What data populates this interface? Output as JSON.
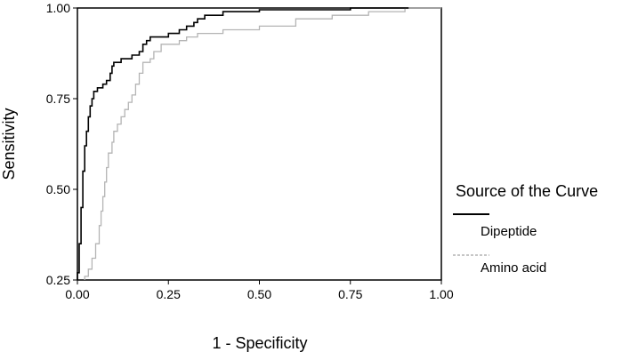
{
  "chart_data": {
    "type": "line",
    "title": "",
    "xlabel": "1 - Specificity",
    "ylabel": "Sensitivity",
    "xlim": [
      0,
      1
    ],
    "ylim": [
      0.25,
      1
    ],
    "x_ticks": [
      "0.00",
      "0.25",
      "0.50",
      "0.75",
      "1.00"
    ],
    "y_ticks": [
      "0.25",
      "0.50",
      "0.75",
      "1.00"
    ],
    "grid": false,
    "legend": {
      "title": "Source of the Curve",
      "position": "right",
      "entries": [
        "Dipeptide",
        "Amino acid"
      ]
    },
    "series": [
      {
        "name": "Dipeptide",
        "color": "#000000",
        "style": "solid",
        "points": [
          [
            0,
            0.25
          ],
          [
            0,
            0.27
          ],
          [
            0.005,
            0.27
          ],
          [
            0.005,
            0.35
          ],
          [
            0.01,
            0.35
          ],
          [
            0.01,
            0.45
          ],
          [
            0.015,
            0.45
          ],
          [
            0.015,
            0.55
          ],
          [
            0.02,
            0.55
          ],
          [
            0.02,
            0.62
          ],
          [
            0.025,
            0.62
          ],
          [
            0.025,
            0.66
          ],
          [
            0.03,
            0.66
          ],
          [
            0.03,
            0.7
          ],
          [
            0.035,
            0.7
          ],
          [
            0.035,
            0.73
          ],
          [
            0.04,
            0.73
          ],
          [
            0.04,
            0.75
          ],
          [
            0.045,
            0.75
          ],
          [
            0.045,
            0.77
          ],
          [
            0.055,
            0.77
          ],
          [
            0.055,
            0.78
          ],
          [
            0.07,
            0.78
          ],
          [
            0.07,
            0.79
          ],
          [
            0.08,
            0.79
          ],
          [
            0.08,
            0.8
          ],
          [
            0.09,
            0.8
          ],
          [
            0.09,
            0.82
          ],
          [
            0.095,
            0.82
          ],
          [
            0.095,
            0.84
          ],
          [
            0.1,
            0.84
          ],
          [
            0.1,
            0.85
          ],
          [
            0.12,
            0.85
          ],
          [
            0.12,
            0.86
          ],
          [
            0.15,
            0.86
          ],
          [
            0.15,
            0.87
          ],
          [
            0.17,
            0.87
          ],
          [
            0.17,
            0.88
          ],
          [
            0.18,
            0.88
          ],
          [
            0.18,
            0.9
          ],
          [
            0.19,
            0.9
          ],
          [
            0.19,
            0.91
          ],
          [
            0.2,
            0.91
          ],
          [
            0.2,
            0.92
          ],
          [
            0.25,
            0.92
          ],
          [
            0.25,
            0.93
          ],
          [
            0.28,
            0.93
          ],
          [
            0.28,
            0.94
          ],
          [
            0.3,
            0.94
          ],
          [
            0.3,
            0.95
          ],
          [
            0.32,
            0.95
          ],
          [
            0.32,
            0.96
          ],
          [
            0.33,
            0.96
          ],
          [
            0.33,
            0.97
          ],
          [
            0.35,
            0.97
          ],
          [
            0.35,
            0.98
          ],
          [
            0.4,
            0.98
          ],
          [
            0.4,
            0.99
          ],
          [
            0.5,
            0.99
          ],
          [
            0.5,
            0.995
          ],
          [
            0.75,
            0.995
          ],
          [
            0.75,
            1.0
          ],
          [
            0.91,
            1.0
          ]
        ]
      },
      {
        "name": "Amino acid",
        "color": "#b4b4b4",
        "style": "solid",
        "points": [
          [
            0.02,
            0.25
          ],
          [
            0.02,
            0.26
          ],
          [
            0.03,
            0.26
          ],
          [
            0.03,
            0.28
          ],
          [
            0.04,
            0.28
          ],
          [
            0.04,
            0.31
          ],
          [
            0.05,
            0.31
          ],
          [
            0.05,
            0.35
          ],
          [
            0.06,
            0.35
          ],
          [
            0.06,
            0.4
          ],
          [
            0.065,
            0.4
          ],
          [
            0.065,
            0.44
          ],
          [
            0.07,
            0.44
          ],
          [
            0.07,
            0.48
          ],
          [
            0.075,
            0.48
          ],
          [
            0.075,
            0.52
          ],
          [
            0.08,
            0.52
          ],
          [
            0.08,
            0.56
          ],
          [
            0.085,
            0.56
          ],
          [
            0.085,
            0.6
          ],
          [
            0.095,
            0.6
          ],
          [
            0.095,
            0.63
          ],
          [
            0.1,
            0.63
          ],
          [
            0.1,
            0.66
          ],
          [
            0.11,
            0.66
          ],
          [
            0.11,
            0.68
          ],
          [
            0.12,
            0.68
          ],
          [
            0.12,
            0.7
          ],
          [
            0.13,
            0.7
          ],
          [
            0.13,
            0.72
          ],
          [
            0.14,
            0.72
          ],
          [
            0.14,
            0.74
          ],
          [
            0.15,
            0.74
          ],
          [
            0.15,
            0.76
          ],
          [
            0.16,
            0.76
          ],
          [
            0.16,
            0.79
          ],
          [
            0.17,
            0.79
          ],
          [
            0.17,
            0.82
          ],
          [
            0.18,
            0.82
          ],
          [
            0.18,
            0.85
          ],
          [
            0.2,
            0.85
          ],
          [
            0.2,
            0.86
          ],
          [
            0.21,
            0.86
          ],
          [
            0.21,
            0.88
          ],
          [
            0.23,
            0.88
          ],
          [
            0.23,
            0.9
          ],
          [
            0.28,
            0.9
          ],
          [
            0.28,
            0.91
          ],
          [
            0.3,
            0.91
          ],
          [
            0.3,
            0.92
          ],
          [
            0.33,
            0.92
          ],
          [
            0.33,
            0.93
          ],
          [
            0.4,
            0.93
          ],
          [
            0.4,
            0.94
          ],
          [
            0.5,
            0.94
          ],
          [
            0.5,
            0.95
          ],
          [
            0.6,
            0.95
          ],
          [
            0.6,
            0.97
          ],
          [
            0.7,
            0.97
          ],
          [
            0.7,
            0.98
          ],
          [
            0.8,
            0.98
          ],
          [
            0.8,
            0.99
          ],
          [
            0.9,
            0.99
          ],
          [
            0.9,
            1.0
          ],
          [
            1.0,
            1.0
          ]
        ]
      }
    ]
  }
}
